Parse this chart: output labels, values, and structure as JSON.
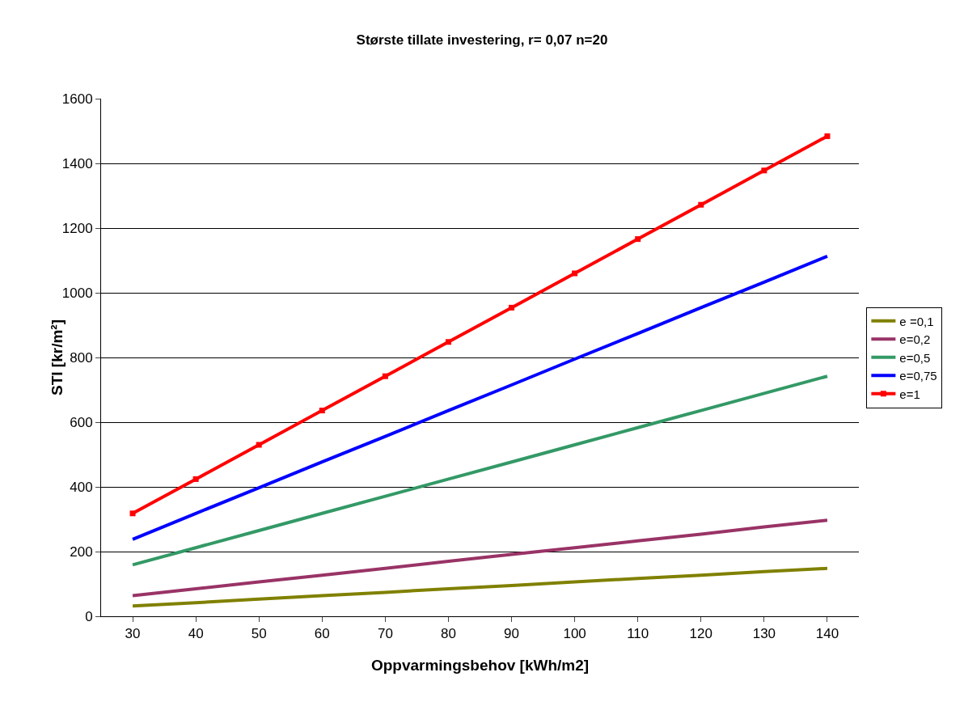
{
  "chart_data": {
    "type": "line",
    "title": "Største tillate investering, r= 0,07 n=20",
    "xlabel": "Oppvarmingsbehov [kWh/m2]",
    "ylabel": "STI [kr/m²]",
    "categories": [
      "30",
      "40",
      "50",
      "60",
      "70",
      "80",
      "90",
      "100",
      "110",
      "120",
      "130",
      "140"
    ],
    "ylim": [
      0,
      1600
    ],
    "yticks": [
      0,
      200,
      400,
      600,
      800,
      1000,
      1200,
      1400,
      1600
    ],
    "grid": "y",
    "legend": "right",
    "line_style": "solid",
    "series": [
      {
        "name": "e =0,1",
        "color": "#808000",
        "marker": "none",
        "values": [
          32,
          42,
          53,
          64,
          74,
          85,
          95,
          106,
          117,
          127,
          138,
          148
        ]
      },
      {
        "name": "e=0,2",
        "color": "#993366",
        "marker": "none",
        "values": [
          64,
          85,
          106,
          127,
          148,
          170,
          191,
          212,
          233,
          254,
          276,
          297
        ]
      },
      {
        "name": "e=0,5",
        "color": "#339966",
        "marker": "none",
        "values": [
          159,
          212,
          265,
          318,
          371,
          424,
          477,
          530,
          583,
          636,
          689,
          742
        ]
      },
      {
        "name": "e=0,75",
        "color": "#0000ff",
        "marker": "none",
        "values": [
          238,
          318,
          397,
          477,
          556,
          636,
          715,
          795,
          874,
          954,
          1033,
          1113
        ]
      },
      {
        "name": "e=1",
        "color": "#ff0000",
        "marker": "square",
        "values": [
          318,
          424,
          530,
          636,
          742,
          848,
          954,
          1060,
          1166,
          1272,
          1378,
          1484
        ]
      }
    ]
  }
}
